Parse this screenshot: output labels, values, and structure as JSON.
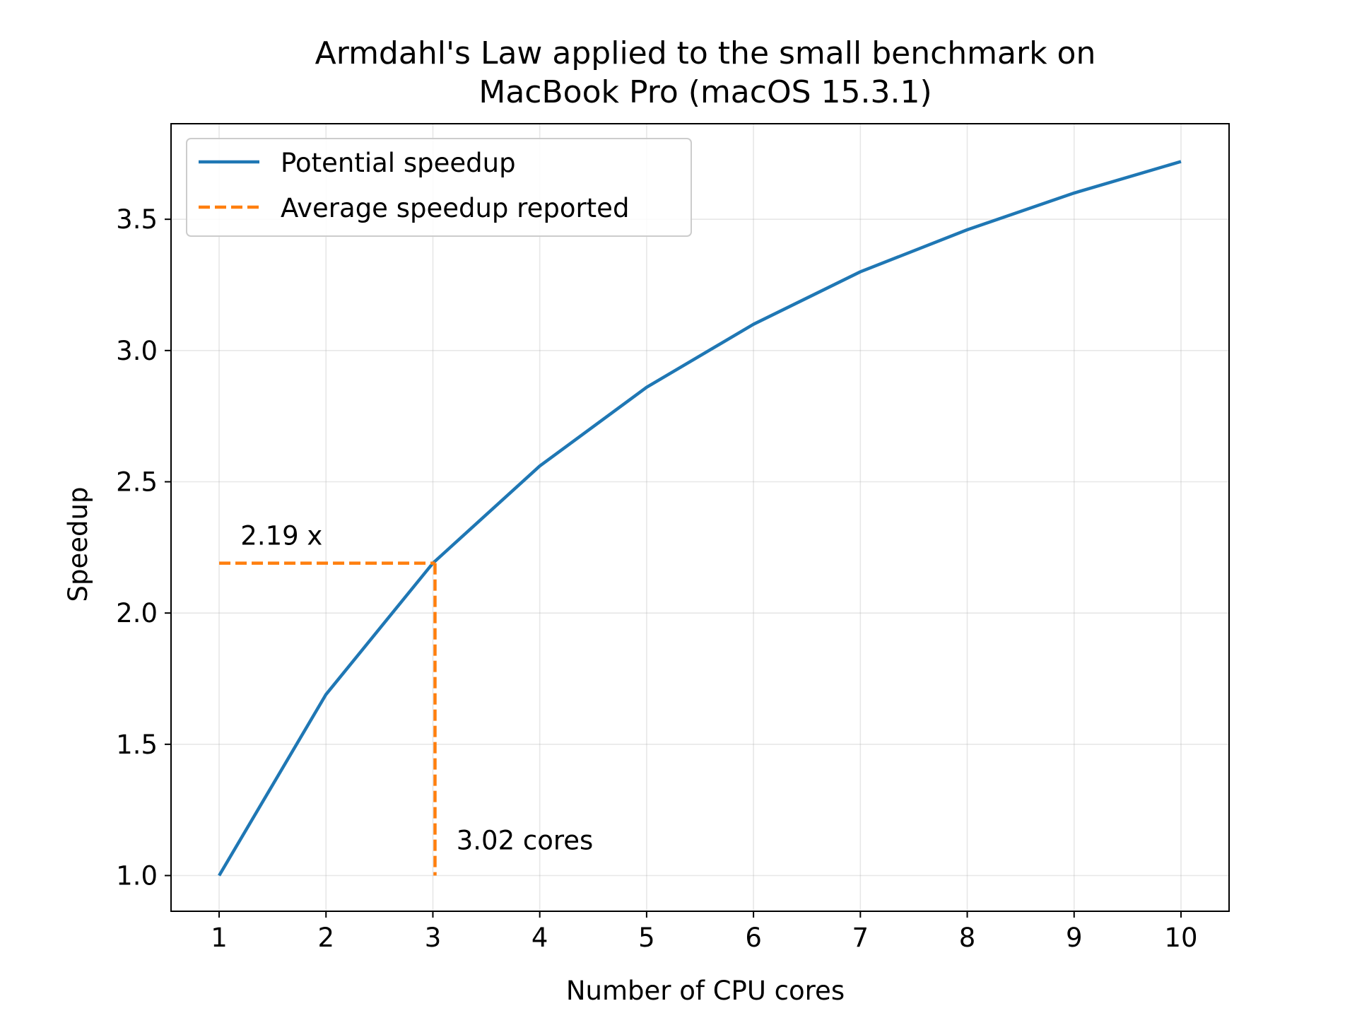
{
  "chart_data": {
    "type": "line",
    "title_lines": [
      "Armdahl's Law applied to the small benchmark on",
      "MacBook Pro (macOS 15.3.1)"
    ],
    "xlabel": "Number of CPU cores",
    "ylabel": "Speedup",
    "xlim": [
      0.55,
      10.45
    ],
    "ylim": [
      0.864,
      3.864
    ],
    "x_ticks": [
      1,
      2,
      3,
      4,
      5,
      6,
      7,
      8,
      9,
      10
    ],
    "y_ticks": [
      1.0,
      1.5,
      2.0,
      2.5,
      3.0,
      3.5
    ],
    "grid": true,
    "legend_position": "upper-left",
    "series": [
      {
        "name": "Potential speedup",
        "style": "solid",
        "color": "#1f77b4",
        "x": [
          1,
          2,
          3,
          4,
          5,
          6,
          7,
          8,
          9,
          10
        ],
        "y": [
          1.0,
          1.69,
          2.19,
          2.56,
          2.86,
          3.1,
          3.3,
          3.46,
          3.6,
          3.72
        ]
      },
      {
        "name": "Average speedup reported",
        "style": "dashed",
        "color": "#ff7f0e",
        "segments": [
          [
            [
              1,
              2.19
            ],
            [
              3.02,
              2.19
            ]
          ],
          [
            [
              3.02,
              2.19
            ],
            [
              3.02,
              1.0
            ]
          ]
        ]
      }
    ],
    "annotations": [
      {
        "text": "2.19 x",
        "x": 1.2,
        "y": 2.26
      },
      {
        "text": "3.02 cores",
        "x": 3.22,
        "y": 1.1
      }
    ]
  }
}
